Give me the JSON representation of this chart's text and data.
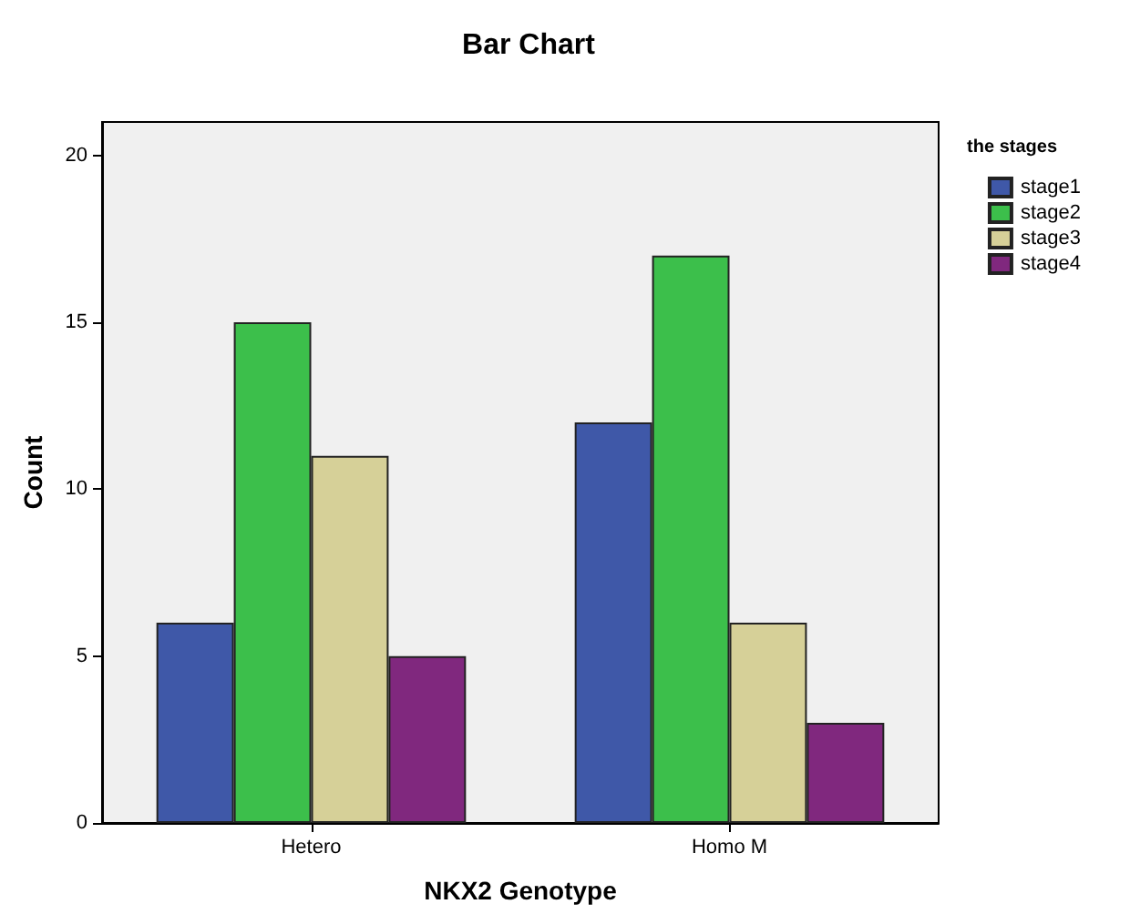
{
  "chart_data": {
    "type": "bar",
    "title": "Bar Chart",
    "xlabel": "NKX2 Genotype",
    "ylabel": "Count",
    "legend_title": "the stages",
    "categories": [
      "Hetero",
      "Homo M"
    ],
    "series": [
      {
        "name": "stage1",
        "color": "#3f58a8",
        "values": [
          6,
          12
        ]
      },
      {
        "name": "stage2",
        "color": "#3cbf4b",
        "values": [
          15,
          17
        ]
      },
      {
        "name": "stage3",
        "color": "#d6d098",
        "values": [
          11,
          6
        ]
      },
      {
        "name": "stage4",
        "color": "#80287e",
        "values": [
          5,
          3
        ]
      }
    ],
    "ylim": [
      0,
      21
    ],
    "yticks": [
      0,
      5,
      10,
      15,
      20
    ],
    "grid": false,
    "legend": "top right"
  }
}
